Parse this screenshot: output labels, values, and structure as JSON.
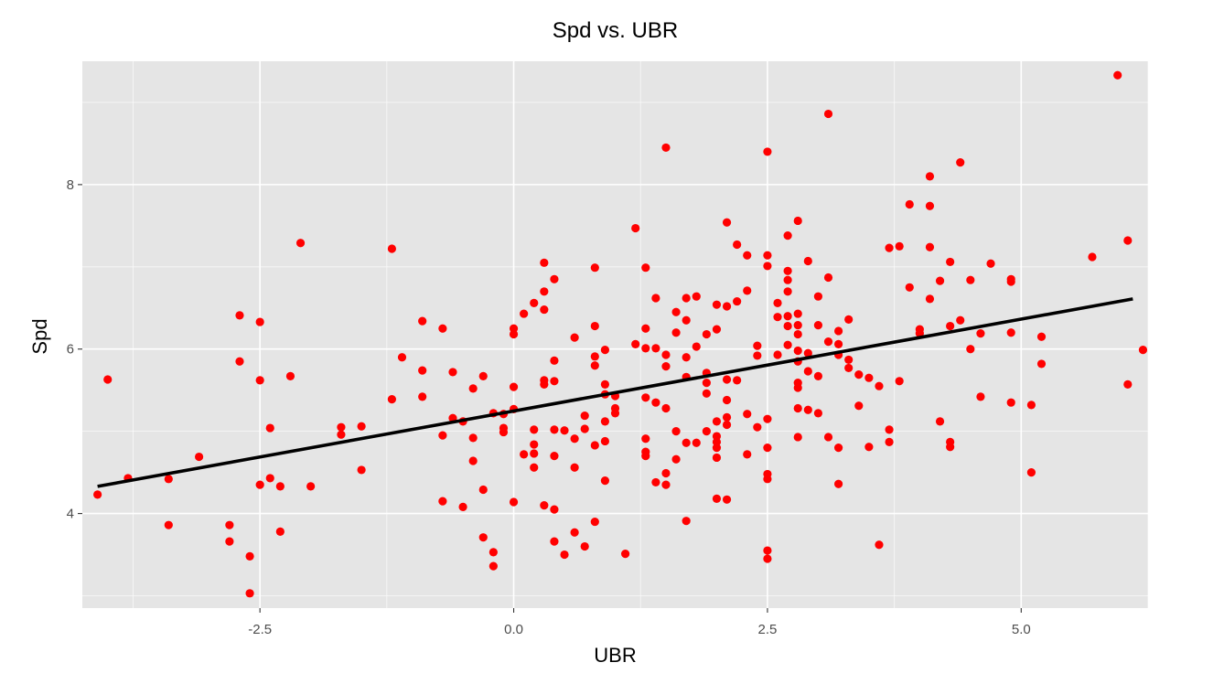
{
  "chart_data": {
    "type": "scatter",
    "title": "Spd vs. UBR",
    "xlabel": "UBR",
    "ylabel": "Spd",
    "xlim": [
      -4.25,
      6.25
    ],
    "ylim": [
      2.85,
      9.5
    ],
    "xticks": [
      -2.5,
      0.0,
      2.5,
      5.0
    ],
    "xtick_labels": [
      "-2.5",
      "0.0",
      "2.5",
      "5.0"
    ],
    "yticks": [
      4,
      6,
      8
    ],
    "ytick_labels": [
      "4",
      "6",
      "8"
    ],
    "grid": true,
    "point_color": "#ff0000",
    "line_color": "#000000",
    "panel_color": "#e5e5e5",
    "fit_line": {
      "x": [
        -4.1,
        6.1
      ],
      "y": [
        4.33,
        6.61
      ]
    },
    "points": [
      [
        -4.1,
        4.23
      ],
      [
        -4.0,
        5.63
      ],
      [
        -3.8,
        4.43
      ],
      [
        -3.4,
        4.42
      ],
      [
        -3.4,
        3.86
      ],
      [
        -3.1,
        4.69
      ],
      [
        -2.8,
        3.86
      ],
      [
        -2.8,
        3.66
      ],
      [
        -2.7,
        6.41
      ],
      [
        -2.7,
        5.85
      ],
      [
        -2.6,
        3.48
      ],
      [
        -2.6,
        3.03
      ],
      [
        -2.5,
        6.33
      ],
      [
        -2.5,
        5.62
      ],
      [
        -2.5,
        4.35
      ],
      [
        -2.4,
        5.04
      ],
      [
        -2.4,
        4.43
      ],
      [
        -2.3,
        4.33
      ],
      [
        -2.3,
        3.78
      ],
      [
        -2.2,
        5.67
      ],
      [
        -2.1,
        7.29
      ],
      [
        -2.0,
        4.33
      ],
      [
        -1.7,
        5.05
      ],
      [
        -1.7,
        4.96
      ],
      [
        -1.5,
        5.06
      ],
      [
        -1.5,
        4.53
      ],
      [
        -1.2,
        7.22
      ],
      [
        -1.2,
        5.39
      ],
      [
        -1.1,
        5.9
      ],
      [
        -0.9,
        6.34
      ],
      [
        -0.9,
        5.74
      ],
      [
        -0.9,
        5.42
      ],
      [
        -0.7,
        6.25
      ],
      [
        -0.7,
        4.95
      ],
      [
        -0.7,
        4.15
      ],
      [
        -0.6,
        5.72
      ],
      [
        -0.6,
        5.16
      ],
      [
        -0.5,
        5.12
      ],
      [
        -0.5,
        4.08
      ],
      [
        -0.4,
        5.52
      ],
      [
        -0.4,
        4.92
      ],
      [
        -0.4,
        4.64
      ],
      [
        -0.3,
        5.67
      ],
      [
        -0.3,
        4.29
      ],
      [
        -0.3,
        3.71
      ],
      [
        -0.2,
        5.22
      ],
      [
        -0.2,
        3.53
      ],
      [
        -0.2,
        3.36
      ],
      [
        -0.1,
        5.21
      ],
      [
        -0.1,
        5.04
      ],
      [
        -0.1,
        4.99
      ],
      [
        0.0,
        6.25
      ],
      [
        0.0,
        6.18
      ],
      [
        0.0,
        5.54
      ],
      [
        0.0,
        5.27
      ],
      [
        0.0,
        4.14
      ],
      [
        0.1,
        6.43
      ],
      [
        0.1,
        4.72
      ],
      [
        0.2,
        6.56
      ],
      [
        0.2,
        5.02
      ],
      [
        0.2,
        4.84
      ],
      [
        0.2,
        4.73
      ],
      [
        0.2,
        4.56
      ],
      [
        0.3,
        7.05
      ],
      [
        0.3,
        6.7
      ],
      [
        0.3,
        6.48
      ],
      [
        0.3,
        5.62
      ],
      [
        0.3,
        5.57
      ],
      [
        0.3,
        4.1
      ],
      [
        0.4,
        6.85
      ],
      [
        0.4,
        5.86
      ],
      [
        0.4,
        5.61
      ],
      [
        0.4,
        5.02
      ],
      [
        0.4,
        4.7
      ],
      [
        0.4,
        4.05
      ],
      [
        0.4,
        3.66
      ],
      [
        0.5,
        5.01
      ],
      [
        0.5,
        3.5
      ],
      [
        0.6,
        6.14
      ],
      [
        0.6,
        4.91
      ],
      [
        0.6,
        4.56
      ],
      [
        0.6,
        3.77
      ],
      [
        0.7,
        5.19
      ],
      [
        0.7,
        5.03
      ],
      [
        0.7,
        3.6
      ],
      [
        0.8,
        6.99
      ],
      [
        0.8,
        6.28
      ],
      [
        0.8,
        5.91
      ],
      [
        0.8,
        5.8
      ],
      [
        0.8,
        4.83
      ],
      [
        0.8,
        3.9
      ],
      [
        0.9,
        5.99
      ],
      [
        0.9,
        5.57
      ],
      [
        0.9,
        5.45
      ],
      [
        0.9,
        5.12
      ],
      [
        0.9,
        4.88
      ],
      [
        0.9,
        4.4
      ],
      [
        1.0,
        5.43
      ],
      [
        1.0,
        5.28
      ],
      [
        1.0,
        5.22
      ],
      [
        1.1,
        3.51
      ],
      [
        1.2,
        7.47
      ],
      [
        1.2,
        6.06
      ],
      [
        1.3,
        6.99
      ],
      [
        1.3,
        6.25
      ],
      [
        1.3,
        6.01
      ],
      [
        1.3,
        5.41
      ],
      [
        1.3,
        4.91
      ],
      [
        1.3,
        4.75
      ],
      [
        1.3,
        4.7
      ],
      [
        1.4,
        6.62
      ],
      [
        1.4,
        6.01
      ],
      [
        1.4,
        5.35
      ],
      [
        1.4,
        4.38
      ],
      [
        1.5,
        8.45
      ],
      [
        1.5,
        5.93
      ],
      [
        1.5,
        5.79
      ],
      [
        1.5,
        5.28
      ],
      [
        1.5,
        4.49
      ],
      [
        1.5,
        4.35
      ],
      [
        1.6,
        6.45
      ],
      [
        1.6,
        6.2
      ],
      [
        1.6,
        5.0
      ],
      [
        1.6,
        4.66
      ],
      [
        1.7,
        6.62
      ],
      [
        1.7,
        6.35
      ],
      [
        1.7,
        5.9
      ],
      [
        1.7,
        5.66
      ],
      [
        1.7,
        4.86
      ],
      [
        1.7,
        3.91
      ],
      [
        1.8,
        6.64
      ],
      [
        1.8,
        6.03
      ],
      [
        1.8,
        4.86
      ],
      [
        1.9,
        6.18
      ],
      [
        1.9,
        5.71
      ],
      [
        1.9,
        5.59
      ],
      [
        1.9,
        5.46
      ],
      [
        1.9,
        5.0
      ],
      [
        2.0,
        6.54
      ],
      [
        2.0,
        6.24
      ],
      [
        2.0,
        5.12
      ],
      [
        2.0,
        4.94
      ],
      [
        2.0,
        4.87
      ],
      [
        2.0,
        4.8
      ],
      [
        2.0,
        4.68
      ],
      [
        2.0,
        4.18
      ],
      [
        2.1,
        7.54
      ],
      [
        2.1,
        6.52
      ],
      [
        2.1,
        5.63
      ],
      [
        2.1,
        5.38
      ],
      [
        2.1,
        5.17
      ],
      [
        2.1,
        5.08
      ],
      [
        2.1,
        4.17
      ],
      [
        2.2,
        7.27
      ],
      [
        2.2,
        6.58
      ],
      [
        2.2,
        5.62
      ],
      [
        2.3,
        7.14
      ],
      [
        2.3,
        6.71
      ],
      [
        2.3,
        5.21
      ],
      [
        2.3,
        4.72
      ],
      [
        2.4,
        6.04
      ],
      [
        2.4,
        5.92
      ],
      [
        2.4,
        5.05
      ],
      [
        2.5,
        8.4
      ],
      [
        2.5,
        7.14
      ],
      [
        2.5,
        7.01
      ],
      [
        2.5,
        5.15
      ],
      [
        2.5,
        4.8
      ],
      [
        2.5,
        4.48
      ],
      [
        2.5,
        4.42
      ],
      [
        2.5,
        3.55
      ],
      [
        2.5,
        3.45
      ],
      [
        2.6,
        6.56
      ],
      [
        2.6,
        6.39
      ],
      [
        2.6,
        5.93
      ],
      [
        2.7,
        7.38
      ],
      [
        2.7,
        6.95
      ],
      [
        2.7,
        6.84
      ],
      [
        2.7,
        6.7
      ],
      [
        2.7,
        6.4
      ],
      [
        2.7,
        6.28
      ],
      [
        2.7,
        6.05
      ],
      [
        2.8,
        7.56
      ],
      [
        2.8,
        6.43
      ],
      [
        2.8,
        6.29
      ],
      [
        2.8,
        6.18
      ],
      [
        2.8,
        5.98
      ],
      [
        2.8,
        5.85
      ],
      [
        2.8,
        5.59
      ],
      [
        2.8,
        5.53
      ],
      [
        2.8,
        5.28
      ],
      [
        2.8,
        4.93
      ],
      [
        2.9,
        7.07
      ],
      [
        2.9,
        5.95
      ],
      [
        2.9,
        5.73
      ],
      [
        2.9,
        5.26
      ],
      [
        3.0,
        6.64
      ],
      [
        3.0,
        6.29
      ],
      [
        3.0,
        5.67
      ],
      [
        3.0,
        5.22
      ],
      [
        3.1,
        8.86
      ],
      [
        3.1,
        6.87
      ],
      [
        3.1,
        6.09
      ],
      [
        3.1,
        4.93
      ],
      [
        3.2,
        6.22
      ],
      [
        3.2,
        6.06
      ],
      [
        3.2,
        5.93
      ],
      [
        3.2,
        4.8
      ],
      [
        3.2,
        4.36
      ],
      [
        3.3,
        6.36
      ],
      [
        3.3,
        5.87
      ],
      [
        3.3,
        5.77
      ],
      [
        3.4,
        5.69
      ],
      [
        3.4,
        5.31
      ],
      [
        3.5,
        5.65
      ],
      [
        3.5,
        4.81
      ],
      [
        3.6,
        5.55
      ],
      [
        3.6,
        3.62
      ],
      [
        3.7,
        7.23
      ],
      [
        3.7,
        5.02
      ],
      [
        3.7,
        4.87
      ],
      [
        3.8,
        7.25
      ],
      [
        3.8,
        5.61
      ],
      [
        3.9,
        7.76
      ],
      [
        3.9,
        6.75
      ],
      [
        4.0,
        6.24
      ],
      [
        4.0,
        6.19
      ],
      [
        4.1,
        8.1
      ],
      [
        4.1,
        7.74
      ],
      [
        4.1,
        7.24
      ],
      [
        4.1,
        6.61
      ],
      [
        4.2,
        6.83
      ],
      [
        4.2,
        5.12
      ],
      [
        4.3,
        7.06
      ],
      [
        4.3,
        6.28
      ],
      [
        4.3,
        4.87
      ],
      [
        4.3,
        4.81
      ],
      [
        4.4,
        8.27
      ],
      [
        4.4,
        6.35
      ],
      [
        4.5,
        6.84
      ],
      [
        4.5,
        6.0
      ],
      [
        4.6,
        6.19
      ],
      [
        4.6,
        5.42
      ],
      [
        4.7,
        7.04
      ],
      [
        4.9,
        6.85
      ],
      [
        4.9,
        6.82
      ],
      [
        4.9,
        6.2
      ],
      [
        4.9,
        5.35
      ],
      [
        5.1,
        5.32
      ],
      [
        5.1,
        4.5
      ],
      [
        5.2,
        6.15
      ],
      [
        5.2,
        5.82
      ],
      [
        5.7,
        7.12
      ],
      [
        5.95,
        9.33
      ],
      [
        6.05,
        7.32
      ],
      [
        6.05,
        5.57
      ],
      [
        6.2,
        5.99
      ]
    ]
  }
}
